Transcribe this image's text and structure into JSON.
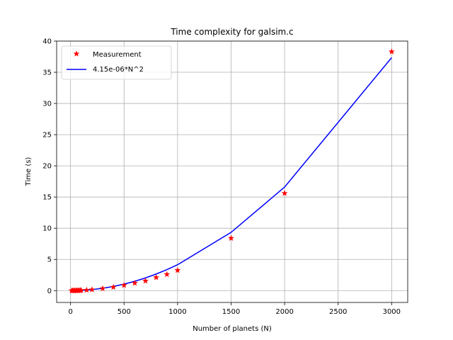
{
  "chart_data": {
    "type": "line",
    "title": "Time complexity for galsim.c",
    "xlabel": "Number of planets (N)",
    "ylabel": "Time (s)",
    "xlim": [
      -130,
      3150
    ],
    "ylim": [
      -1.9,
      40
    ],
    "xticks": [
      0,
      500,
      1000,
      1500,
      2000,
      2500,
      3000
    ],
    "yticks": [
      0,
      5,
      10,
      15,
      20,
      25,
      30,
      35,
      40
    ],
    "grid": true,
    "legend_position": "upper-left",
    "series": [
      {
        "name": "Measurement",
        "kind": "scatter",
        "marker": "star",
        "color": "#ff0000",
        "x": [
          10,
          20,
          30,
          40,
          50,
          60,
          70,
          80,
          90,
          100,
          150,
          200,
          300,
          400,
          500,
          600,
          700,
          800,
          900,
          1000,
          1500,
          2000,
          3000
        ],
        "y": [
          0.0,
          0.0,
          0.0,
          0.0,
          0.01,
          0.01,
          0.02,
          0.02,
          0.03,
          0.04,
          0.08,
          0.15,
          0.33,
          0.55,
          0.85,
          1.2,
          1.55,
          2.1,
          2.6,
          3.25,
          8.4,
          15.6,
          38.3
        ]
      },
      {
        "name": "4.15e-06*N^2",
        "kind": "line",
        "color": "#0000ff",
        "x": [
          10,
          20,
          30,
          40,
          50,
          60,
          70,
          80,
          90,
          100,
          150,
          200,
          300,
          400,
          500,
          600,
          700,
          800,
          900,
          1000,
          1500,
          2000,
          3000
        ],
        "y": [
          0.0004,
          0.0017,
          0.0037,
          0.0066,
          0.0104,
          0.0149,
          0.0203,
          0.0266,
          0.0336,
          0.0415,
          0.0934,
          0.166,
          0.3735,
          0.664,
          1.0375,
          1.494,
          2.0335,
          2.656,
          3.3615,
          4.15,
          9.3375,
          16.6,
          37.35
        ]
      }
    ]
  }
}
